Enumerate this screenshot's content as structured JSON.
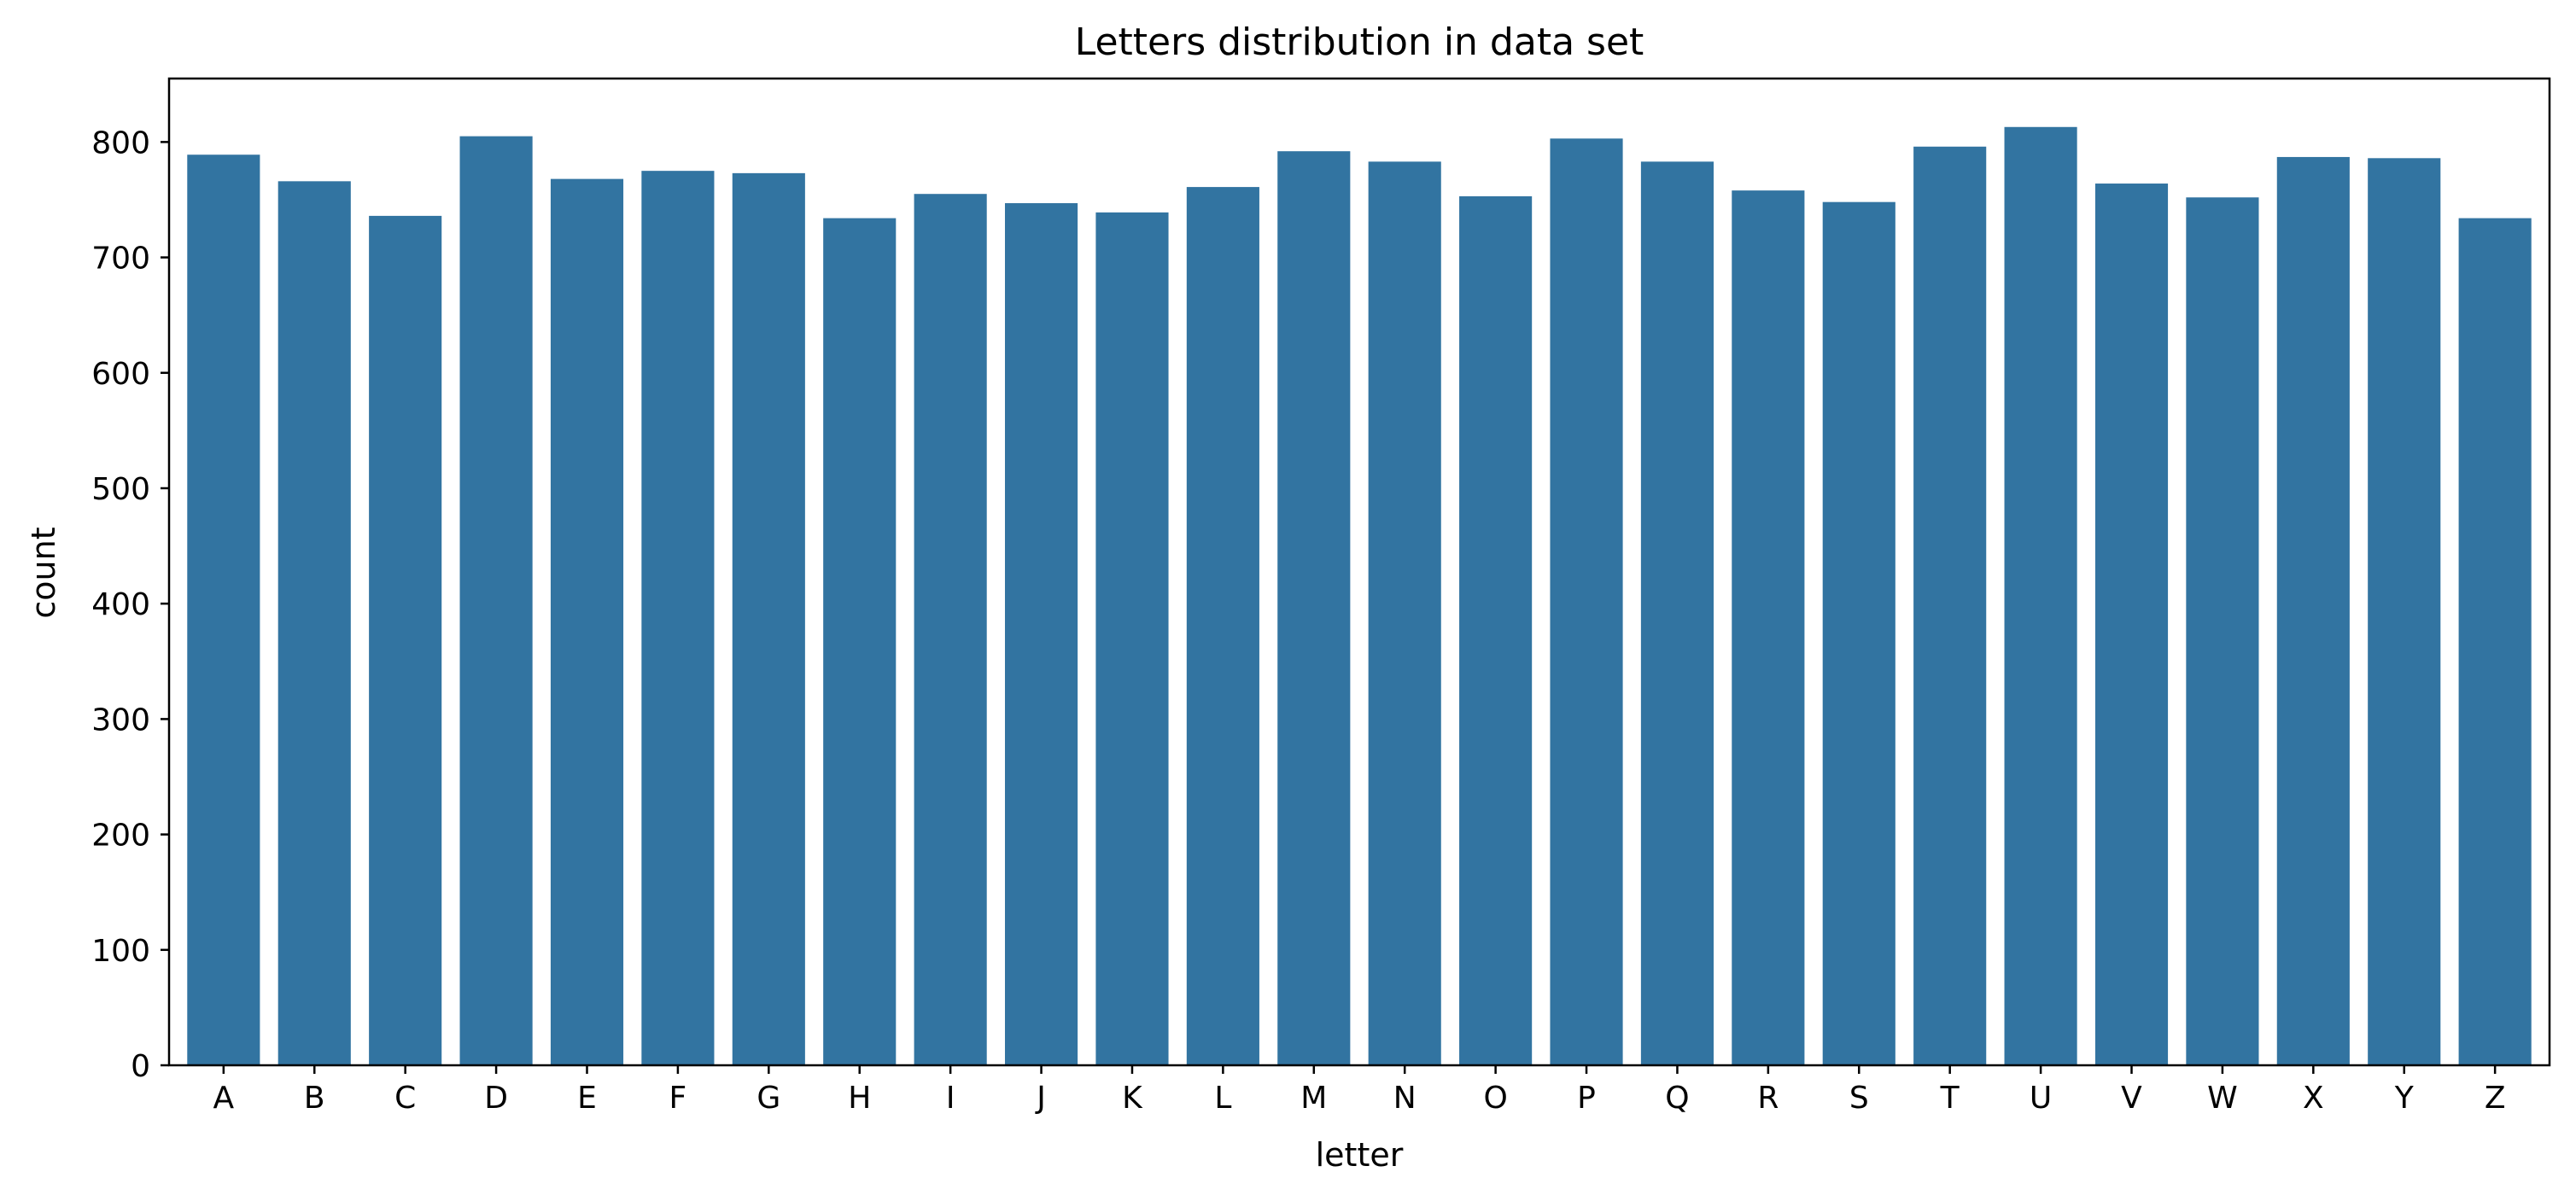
{
  "chart_data": {
    "type": "bar",
    "title": "Letters distribution in data set",
    "xlabel": "letter",
    "ylabel": "count",
    "categories": [
      "A",
      "B",
      "C",
      "D",
      "E",
      "F",
      "G",
      "H",
      "I",
      "J",
      "K",
      "L",
      "M",
      "N",
      "O",
      "P",
      "Q",
      "R",
      "S",
      "T",
      "U",
      "V",
      "W",
      "X",
      "Y",
      "Z"
    ],
    "values": [
      789,
      766,
      736,
      805,
      768,
      775,
      773,
      734,
      755,
      747,
      739,
      761,
      792,
      783,
      753,
      803,
      783,
      758,
      748,
      796,
      813,
      764,
      752,
      787,
      786,
      734
    ],
    "ylim": [
      0,
      855
    ],
    "yticks": [
      0,
      100,
      200,
      300,
      400,
      500,
      600,
      700,
      800
    ],
    "grid": false,
    "bar_color": "#3274a1"
  }
}
